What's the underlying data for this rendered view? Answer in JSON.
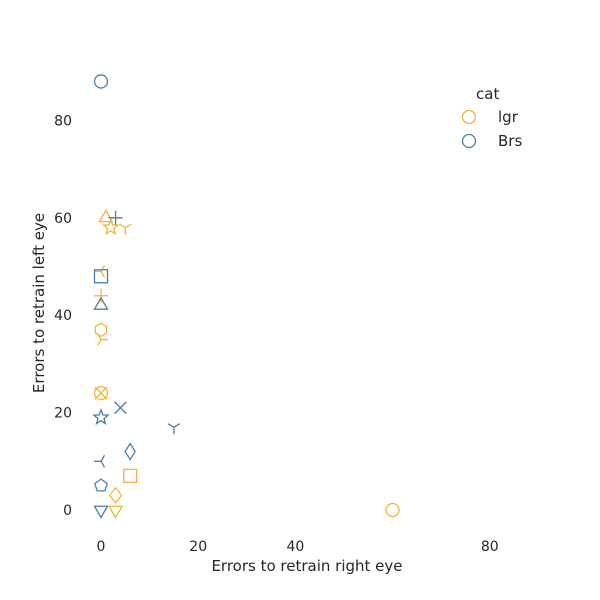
{
  "chart_data": {
    "type": "scatter",
    "title": "",
    "xlabel": "Errors to retrain right eye",
    "ylabel": "Errors to retrain left eye",
    "xlim": [
      -5,
      100
    ],
    "ylim": [
      -6,
      96
    ],
    "x_ticks": [
      0,
      20,
      40,
      80
    ],
    "y_ticks": [
      0,
      20,
      40,
      60,
      80
    ],
    "grid": false,
    "legend": {
      "title": "cat",
      "placement": "top-right",
      "entries": [
        "lgr",
        "Brs"
      ]
    },
    "colors": {
      "lgr": "#f2b43a",
      "Brs": "#4a7fa7"
    },
    "series": [
      {
        "name": "lgr",
        "points": [
          {
            "x": 60,
            "y": 0,
            "marker": "circle"
          },
          {
            "x": 1,
            "y": 60,
            "marker": "triangle-up"
          },
          {
            "x": 2,
            "y": 58,
            "marker": "star"
          },
          {
            "x": 5,
            "y": 58,
            "marker": "tri-down"
          },
          {
            "x": 0,
            "y": 49,
            "marker": "tri-left"
          },
          {
            "x": 0,
            "y": 44,
            "marker": "plus"
          },
          {
            "x": 0,
            "y": 37,
            "marker": "hexagon"
          },
          {
            "x": 0,
            "y": 35,
            "marker": "tri-right"
          },
          {
            "x": 0,
            "y": 24,
            "marker": "x"
          },
          {
            "x": 0,
            "y": 24,
            "marker": "circle"
          },
          {
            "x": 6,
            "y": 7,
            "marker": "square"
          },
          {
            "x": 3,
            "y": 3,
            "marker": "diamond"
          },
          {
            "x": 3,
            "y": 0,
            "marker": "triangle-down"
          }
        ]
      },
      {
        "name": "Brs",
        "points": [
          {
            "x": 0,
            "y": 88,
            "marker": "circle"
          },
          {
            "x": 3,
            "y": 60,
            "marker": "plus"
          },
          {
            "x": 0,
            "y": 48,
            "marker": "square"
          },
          {
            "x": 0,
            "y": 42,
            "marker": "triangle-up"
          },
          {
            "x": 4,
            "y": 21,
            "marker": "x"
          },
          {
            "x": 0,
            "y": 19,
            "marker": "star"
          },
          {
            "x": 15,
            "y": 17,
            "marker": "tri-down"
          },
          {
            "x": 6,
            "y": 12,
            "marker": "thin-diamond"
          },
          {
            "x": 0,
            "y": 10,
            "marker": "tri-left"
          },
          {
            "x": 0,
            "y": 5,
            "marker": "pentagon"
          },
          {
            "x": 0,
            "y": 0,
            "marker": "triangle-down"
          }
        ]
      }
    ]
  }
}
